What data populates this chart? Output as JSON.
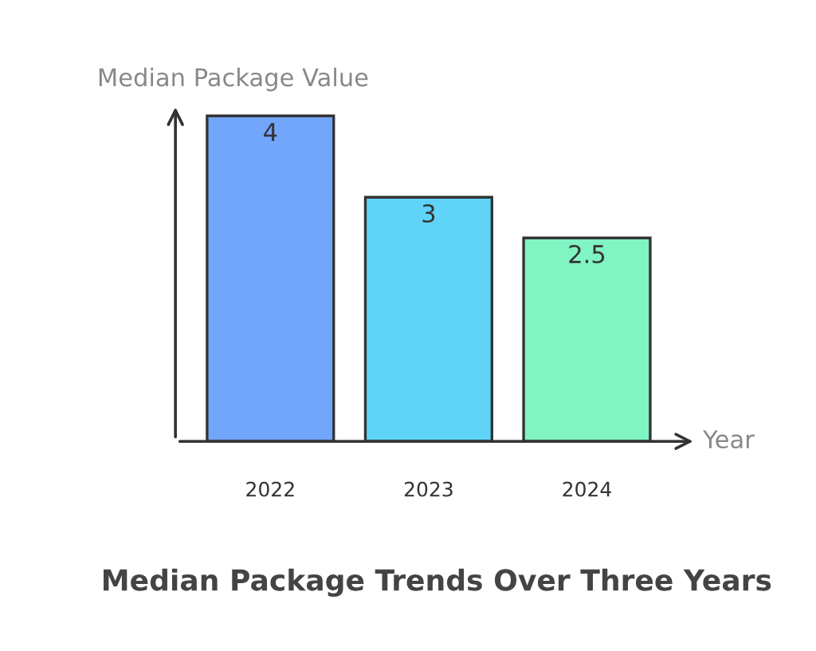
{
  "chart_data": {
    "type": "bar",
    "title": "Median Package Trends Over Three Years",
    "xlabel": "Year",
    "ylabel": "Median Package Value",
    "categories": [
      "2022",
      "2023",
      "2024"
    ],
    "values": [
      4,
      3,
      2.5
    ],
    "colors": [
      "#72a6fa",
      "#5fd3f8",
      "#80f4c2"
    ],
    "data_labels": true,
    "grid": false,
    "legend": false,
    "tick_labels": "x"
  }
}
